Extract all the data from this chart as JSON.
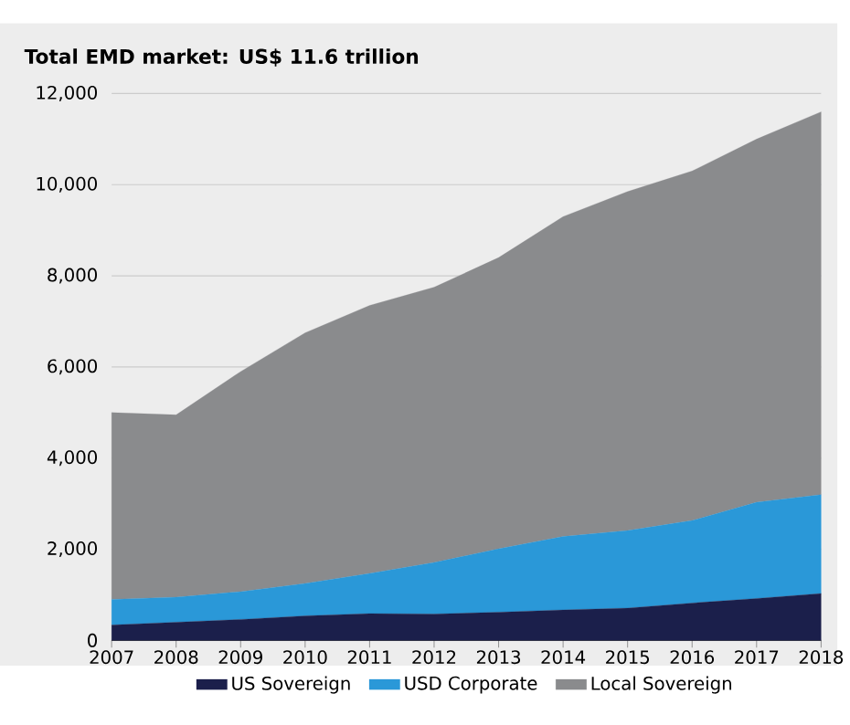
{
  "chart_data": {
    "type": "area",
    "title": "Total EMD market: US$ 11.6 trillion",
    "categories": [
      "2007",
      "2008",
      "2009",
      "2010",
      "2011",
      "2012",
      "2013",
      "2014",
      "2015",
      "2016",
      "2017",
      "2018"
    ],
    "stacked": true,
    "series": [
      {
        "name": "US Sovereign",
        "color": "#1b1f4b",
        "values": [
          340,
          400,
          460,
          540,
          590,
          580,
          620,
          670,
          710,
          820,
          920,
          1030
        ]
      },
      {
        "name": "USD Corporate",
        "color": "#2a98d8",
        "values": [
          560,
          550,
          610,
          710,
          880,
          1130,
          1390,
          1610,
          1700,
          1810,
          2110,
          2170
        ]
      },
      {
        "name": "Local Sovereign",
        "color": "#8a8b8d",
        "values": [
          4100,
          4000,
          4830,
          5500,
          5880,
          6040,
          6390,
          7020,
          7440,
          7670,
          7970,
          8400
        ]
      }
    ],
    "ylim": [
      0,
      12000
    ],
    "yticks": [
      {
        "value": 0,
        "label": "0"
      },
      {
        "value": 2000,
        "label": "2,000"
      },
      {
        "value": 4000,
        "label": "4,000"
      },
      {
        "value": 6000,
        "label": "6,000"
      },
      {
        "value": 8000,
        "label": "8,000"
      },
      {
        "value": 10000,
        "label": "10,000"
      },
      {
        "value": 12000,
        "label": "12,000"
      }
    ],
    "grid": "y",
    "legend": "bottom"
  }
}
